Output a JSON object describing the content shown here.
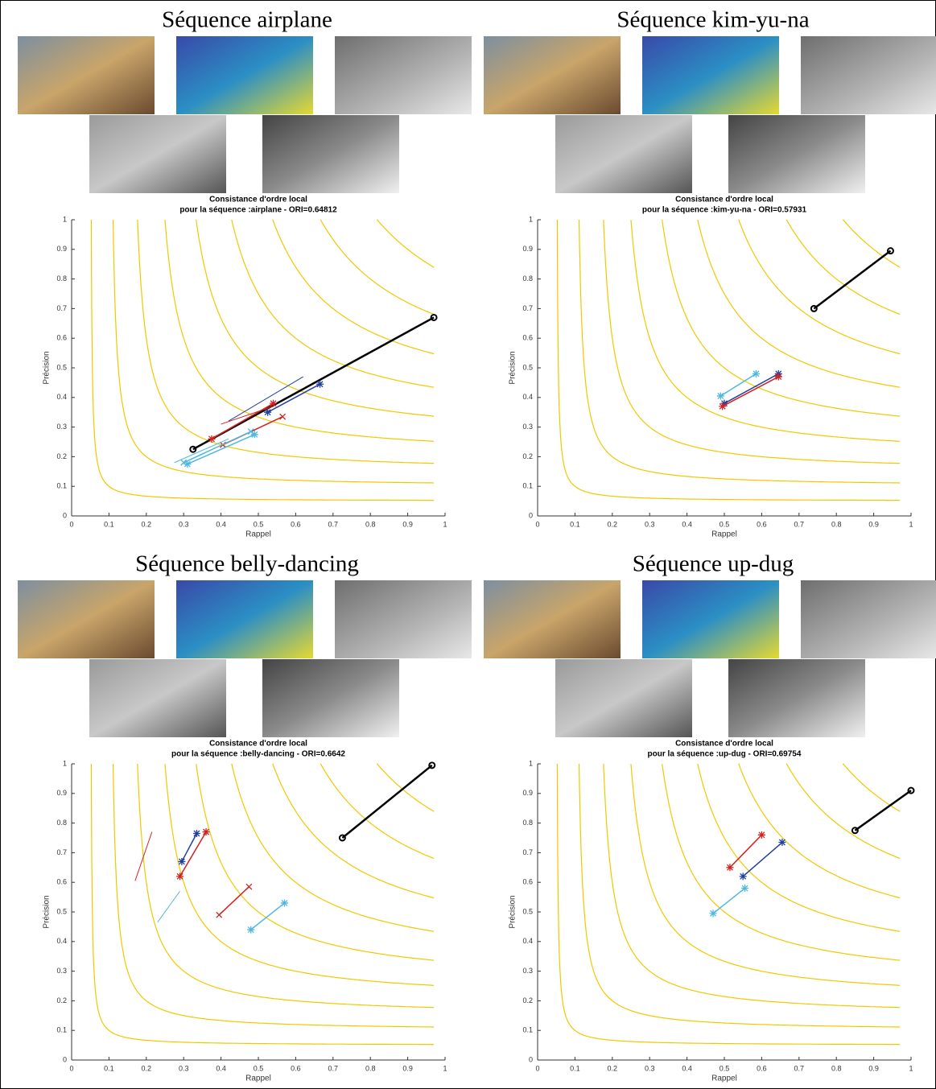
{
  "panels": [
    {
      "title": "Séquence airplane"
    },
    {
      "title": "Séquence kim-yu-na"
    },
    {
      "title": "Séquence belly-dancing"
    },
    {
      "title": "Séquence up-dug"
    }
  ],
  "chart_data": [
    {
      "type": "line",
      "title": [
        "Consistance d'ordre local",
        "pour la séquence :airplane - ORI=0.64812"
      ],
      "x_label": "Rappel",
      "y_label": "Précision",
      "xlim": [
        0,
        1
      ],
      "ylim": [
        0,
        1
      ],
      "xticks": [
        0,
        0.1,
        0.2,
        0.3,
        0.4,
        0.5,
        0.6,
        0.7,
        0.8,
        0.9,
        1
      ],
      "yticks": [
        0,
        0.1,
        0.2,
        0.3,
        0.4,
        0.5,
        0.6,
        0.7,
        0.8,
        0.9,
        1
      ],
      "f_contours": [
        0.1,
        0.2,
        0.3,
        0.4,
        0.5,
        0.6,
        0.7,
        0.8,
        0.9
      ],
      "contour_color": "#f0c800",
      "series": [
        {
          "color": "#000000",
          "marker": "o",
          "x": [
            0.325,
            0.97
          ],
          "values": [
            0.225,
            0.67
          ]
        },
        {
          "color": "#2040a0",
          "marker": "*",
          "x": [
            0.525,
            0.665
          ],
          "values": [
            0.35,
            0.445
          ]
        },
        {
          "color": "#2040a0",
          "marker": "none",
          "x": [
            0.42,
            0.62
          ],
          "values": [
            0.32,
            0.47
          ]
        },
        {
          "color": "#d62020",
          "marker": "*",
          "x": [
            0.375,
            0.54
          ],
          "values": [
            0.26,
            0.38
          ]
        },
        {
          "color": "#d62020",
          "marker": "x",
          "x": [
            0.405,
            0.565
          ],
          "values": [
            0.24,
            0.335
          ]
        },
        {
          "color": "#d62020",
          "marker": "none",
          "x": [
            0.4,
            0.54
          ],
          "values": [
            0.31,
            0.37
          ]
        },
        {
          "color": "#4db8e0",
          "marker": "x",
          "x": [
            0.3,
            0.48
          ],
          "values": [
            0.18,
            0.285
          ]
        },
        {
          "color": "#4db8e0",
          "marker": "*",
          "x": [
            0.31,
            0.49
          ],
          "values": [
            0.175,
            0.275
          ]
        },
        {
          "color": "#4db8e0",
          "marker": "none",
          "x": [
            0.275,
            0.42
          ],
          "values": [
            0.18,
            0.26
          ]
        }
      ]
    },
    {
      "type": "line",
      "title": [
        "Consistance d'ordre local",
        "pour la séquence :kim-yu-na - ORI=0.57931"
      ],
      "x_label": "Rappel",
      "y_label": "Précision",
      "xlim": [
        0,
        1
      ],
      "ylim": [
        0,
        1
      ],
      "xticks": [
        0,
        0.1,
        0.2,
        0.3,
        0.4,
        0.5,
        0.6,
        0.7,
        0.8,
        0.9,
        1
      ],
      "yticks": [
        0,
        0.1,
        0.2,
        0.3,
        0.4,
        0.5,
        0.6,
        0.7,
        0.8,
        0.9,
        1
      ],
      "f_contours": [
        0.1,
        0.2,
        0.3,
        0.4,
        0.5,
        0.6,
        0.7,
        0.8,
        0.9
      ],
      "contour_color": "#f0c800",
      "series": [
        {
          "color": "#000000",
          "marker": "o",
          "x": [
            0.74,
            0.945
          ],
          "values": [
            0.7,
            0.895
          ]
        },
        {
          "color": "#2040a0",
          "marker": "*",
          "x": [
            0.5,
            0.645
          ],
          "values": [
            0.38,
            0.48
          ]
        },
        {
          "color": "#d62020",
          "marker": "*",
          "x": [
            0.495,
            0.645
          ],
          "values": [
            0.37,
            0.47
          ]
        },
        {
          "color": "#4db8e0",
          "marker": "*",
          "x": [
            0.49,
            0.585
          ],
          "values": [
            0.405,
            0.48
          ]
        }
      ]
    },
    {
      "type": "line",
      "title": [
        "Consistance d'ordre local",
        "pour la séquence :belly-dancing - ORI=0.6642"
      ],
      "x_label": "Rappel",
      "y_label": "Précision",
      "xlim": [
        0,
        1
      ],
      "ylim": [
        0,
        1
      ],
      "xticks": [
        0,
        0.1,
        0.2,
        0.3,
        0.4,
        0.5,
        0.6,
        0.7,
        0.8,
        0.9,
        1
      ],
      "yticks": [
        0,
        0.1,
        0.2,
        0.3,
        0.4,
        0.5,
        0.6,
        0.7,
        0.8,
        0.9,
        1
      ],
      "f_contours": [
        0.1,
        0.2,
        0.3,
        0.4,
        0.5,
        0.6,
        0.7,
        0.8,
        0.9
      ],
      "contour_color": "#f0c800",
      "series": [
        {
          "color": "#000000",
          "marker": "o",
          "x": [
            0.725,
            0.965
          ],
          "values": [
            0.75,
            0.995
          ]
        },
        {
          "color": "#2040a0",
          "marker": "*",
          "x": [
            0.295,
            0.335
          ],
          "values": [
            0.67,
            0.765
          ]
        },
        {
          "color": "#d62020",
          "marker": "*",
          "x": [
            0.29,
            0.36
          ],
          "values": [
            0.62,
            0.77
          ]
        },
        {
          "color": "#d62020",
          "marker": "none",
          "x": [
            0.17,
            0.215
          ],
          "values": [
            0.605,
            0.77
          ]
        },
        {
          "color": "#4db8e0",
          "marker": "none",
          "x": [
            0.23,
            0.29
          ],
          "values": [
            0.465,
            0.57
          ]
        },
        {
          "color": "#d62020",
          "marker": "x",
          "x": [
            0.395,
            0.475
          ],
          "values": [
            0.49,
            0.585
          ]
        },
        {
          "color": "#4db8e0",
          "marker": "*",
          "x": [
            0.48,
            0.57
          ],
          "values": [
            0.44,
            0.53
          ]
        }
      ]
    },
    {
      "type": "line",
      "title": [
        "Consistance d'ordre local",
        "pour la séquence :up-dug - ORI=0.69754"
      ],
      "x_label": "Rappel",
      "y_label": "Précision",
      "xlim": [
        0,
        1
      ],
      "ylim": [
        0,
        1
      ],
      "xticks": [
        0,
        0.1,
        0.2,
        0.3,
        0.4,
        0.5,
        0.6,
        0.7,
        0.8,
        0.9,
        1
      ],
      "yticks": [
        0,
        0.1,
        0.2,
        0.3,
        0.4,
        0.5,
        0.6,
        0.7,
        0.8,
        0.9,
        1
      ],
      "f_contours": [
        0.1,
        0.2,
        0.3,
        0.4,
        0.5,
        0.6,
        0.7,
        0.8,
        0.9
      ],
      "contour_color": "#f0c800",
      "series": [
        {
          "color": "#000000",
          "marker": "o",
          "x": [
            0.85,
            1
          ],
          "values": [
            0.775,
            0.91
          ]
        },
        {
          "color": "#d62020",
          "marker": "*",
          "x": [
            0.515,
            0.6
          ],
          "values": [
            0.65,
            0.76
          ]
        },
        {
          "color": "#2040a0",
          "marker": "*",
          "x": [
            0.55,
            0.655
          ],
          "values": [
            0.62,
            0.735
          ]
        },
        {
          "color": "#4db8e0",
          "marker": "*",
          "x": [
            0.47,
            0.555
          ],
          "values": [
            0.495,
            0.58
          ]
        }
      ]
    }
  ]
}
